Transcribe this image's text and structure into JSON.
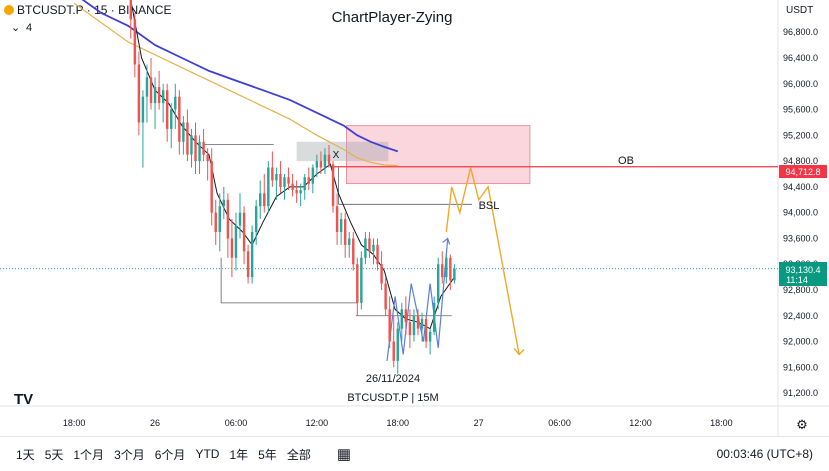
{
  "header": {
    "symbol": "BTCUSDT.P · 15 · BINANCE",
    "indicator_count": "4",
    "watermark": "ChartPlayer-Zying",
    "currency": "USDT"
  },
  "colors": {
    "up": "#26a69a",
    "down": "#ef5350",
    "ma_fast": "#131722",
    "ma_slow_blue": "#3f3fd6",
    "ma_slow_gold": "#e3b24d",
    "projection": "#f0a92a",
    "ob_fill": "#f9c8d0",
    "level_line": "#f23645",
    "price_tag": "#089981"
  },
  "chart_data": {
    "type": "candlestick",
    "y_ticks": [
      "96,800.0",
      "96,400.0",
      "96,000.0",
      "95,600.0",
      "95,200.0",
      "94,800.0",
      "94,400.0",
      "94,000.0",
      "93,600.0",
      "93,200.0",
      "92,800.0",
      "92,400.0",
      "92,000.0",
      "91,600.0",
      "91,200.0"
    ],
    "y_tick_values": [
      96800,
      96400,
      96000,
      95600,
      95200,
      94800,
      94400,
      94000,
      93600,
      93200,
      92800,
      92400,
      92000,
      91600,
      91200
    ],
    "ylim": [
      91000,
      97300
    ],
    "x_ticks": [
      "18:00",
      "26",
      "06:00",
      "12:00",
      "18:00",
      "27",
      "06:00",
      "12:00",
      "18:00"
    ],
    "x_tick_hours": [
      18,
      24,
      30,
      36,
      42,
      48,
      54,
      60,
      66
    ],
    "xlim": [
      12.5,
      70.2
    ],
    "candles": [
      {
        "t": 22.2,
        "o": 97300,
        "h": 97450,
        "l": 96700,
        "c": 97000
      },
      {
        "t": 22.5,
        "o": 97000,
        "h": 97100,
        "l": 96100,
        "c": 96300
      },
      {
        "t": 22.8,
        "o": 96300,
        "h": 96500,
        "l": 95200,
        "c": 95400
      },
      {
        "t": 23.1,
        "o": 95400,
        "h": 95900,
        "l": 94700,
        "c": 95800
      },
      {
        "t": 23.4,
        "o": 95800,
        "h": 96300,
        "l": 95400,
        "c": 96100
      },
      {
        "t": 23.7,
        "o": 96100,
        "h": 96400,
        "l": 95600,
        "c": 95700
      },
      {
        "t": 24.0,
        "o": 95700,
        "h": 96100,
        "l": 95300,
        "c": 95950
      },
      {
        "t": 24.3,
        "o": 95950,
        "h": 96200,
        "l": 95600,
        "c": 95700
      },
      {
        "t": 24.6,
        "o": 95700,
        "h": 96000,
        "l": 95400,
        "c": 95900
      },
      {
        "t": 24.9,
        "o": 95900,
        "h": 96000,
        "l": 95100,
        "c": 95300
      },
      {
        "t": 25.2,
        "o": 95300,
        "h": 95700,
        "l": 95000,
        "c": 95600
      },
      {
        "t": 25.5,
        "o": 95600,
        "h": 96000,
        "l": 95300,
        "c": 95800
      },
      {
        "t": 25.8,
        "o": 95800,
        "h": 95900,
        "l": 94900,
        "c": 95100
      },
      {
        "t": 26.1,
        "o": 95100,
        "h": 95500,
        "l": 94900,
        "c": 95400
      },
      {
        "t": 26.4,
        "o": 95400,
        "h": 95600,
        "l": 94800,
        "c": 94900
      },
      {
        "t": 26.7,
        "o": 94900,
        "h": 95300,
        "l": 94700,
        "c": 95200
      },
      {
        "t": 27.0,
        "o": 95200,
        "h": 95400,
        "l": 94600,
        "c": 94800
      },
      {
        "t": 27.3,
        "o": 94800,
        "h": 95200,
        "l": 94600,
        "c": 95100
      },
      {
        "t": 27.6,
        "o": 95100,
        "h": 95300,
        "l": 94800,
        "c": 94900
      },
      {
        "t": 27.9,
        "o": 94900,
        "h": 95000,
        "l": 94500,
        "c": 94800
      },
      {
        "t": 28.2,
        "o": 94800,
        "h": 95000,
        "l": 93800,
        "c": 94000
      },
      {
        "t": 28.5,
        "o": 94000,
        "h": 94200,
        "l": 93500,
        "c": 93700
      },
      {
        "t": 28.8,
        "o": 93700,
        "h": 94300,
        "l": 93400,
        "c": 94100
      },
      {
        "t": 29.1,
        "o": 94100,
        "h": 94400,
        "l": 93900,
        "c": 94200
      },
      {
        "t": 29.4,
        "o": 94200,
        "h": 94300,
        "l": 93300,
        "c": 93600
      },
      {
        "t": 29.7,
        "o": 93600,
        "h": 93900,
        "l": 93000,
        "c": 93300
      },
      {
        "t": 30.0,
        "o": 93300,
        "h": 94000,
        "l": 93100,
        "c": 93800
      },
      {
        "t": 30.3,
        "o": 93800,
        "h": 94300,
        "l": 93600,
        "c": 94000
      },
      {
        "t": 30.6,
        "o": 94000,
        "h": 94100,
        "l": 93200,
        "c": 93400
      },
      {
        "t": 30.9,
        "o": 93400,
        "h": 93500,
        "l": 92900,
        "c": 93000
      },
      {
        "t": 31.2,
        "o": 93000,
        "h": 93800,
        "l": 92900,
        "c": 93700
      },
      {
        "t": 31.5,
        "o": 93700,
        "h": 94200,
        "l": 93500,
        "c": 94100
      },
      {
        "t": 31.8,
        "o": 94100,
        "h": 94500,
        "l": 93900,
        "c": 94300
      },
      {
        "t": 32.1,
        "o": 94300,
        "h": 94600,
        "l": 94000,
        "c": 94100
      },
      {
        "t": 32.4,
        "o": 94100,
        "h": 94800,
        "l": 94000,
        "c": 94700
      },
      {
        "t": 32.7,
        "o": 94700,
        "h": 94950,
        "l": 94400,
        "c": 94500
      },
      {
        "t": 33.0,
        "o": 94500,
        "h": 94700,
        "l": 94200,
        "c": 94600
      },
      {
        "t": 33.3,
        "o": 94600,
        "h": 94800,
        "l": 94300,
        "c": 94400
      },
      {
        "t": 33.6,
        "o": 94400,
        "h": 94600,
        "l": 94200,
        "c": 94550
      },
      {
        "t": 33.9,
        "o": 94550,
        "h": 94700,
        "l": 94350,
        "c": 94450
      },
      {
        "t": 34.2,
        "o": 94450,
        "h": 94600,
        "l": 94250,
        "c": 94350
      },
      {
        "t": 34.5,
        "o": 94350,
        "h": 94500,
        "l": 94150,
        "c": 94300
      },
      {
        "t": 34.8,
        "o": 94300,
        "h": 94450,
        "l": 94100,
        "c": 94350
      },
      {
        "t": 35.1,
        "o": 94350,
        "h": 94600,
        "l": 94200,
        "c": 94550
      },
      {
        "t": 35.4,
        "o": 94550,
        "h": 94700,
        "l": 94350,
        "c": 94450
      },
      {
        "t": 35.7,
        "o": 94450,
        "h": 94750,
        "l": 94300,
        "c": 94700
      },
      {
        "t": 36.0,
        "o": 94700,
        "h": 94900,
        "l": 94550,
        "c": 94800
      },
      {
        "t": 36.3,
        "o": 94800,
        "h": 94950,
        "l": 94600,
        "c": 94700
      },
      {
        "t": 36.6,
        "o": 94700,
        "h": 95000,
        "l": 94600,
        "c": 94900
      },
      {
        "t": 36.9,
        "o": 94900,
        "h": 95050,
        "l": 94700,
        "c": 94750
      },
      {
        "t": 37.2,
        "o": 94750,
        "h": 94800,
        "l": 94000,
        "c": 94100
      },
      {
        "t": 37.5,
        "o": 94100,
        "h": 94300,
        "l": 93500,
        "c": 93700
      },
      {
        "t": 37.8,
        "o": 93700,
        "h": 94000,
        "l": 93500,
        "c": 93900
      },
      {
        "t": 38.1,
        "o": 93900,
        "h": 94000,
        "l": 93300,
        "c": 93500
      },
      {
        "t": 38.4,
        "o": 93500,
        "h": 93700,
        "l": 93300,
        "c": 93600
      },
      {
        "t": 38.7,
        "o": 93600,
        "h": 93700,
        "l": 93100,
        "c": 93200
      },
      {
        "t": 39.0,
        "o": 93200,
        "h": 93300,
        "l": 92400,
        "c": 92600
      },
      {
        "t": 39.3,
        "o": 92600,
        "h": 93400,
        "l": 92500,
        "c": 93300
      },
      {
        "t": 39.6,
        "o": 93300,
        "h": 93700,
        "l": 93200,
        "c": 93600
      },
      {
        "t": 39.9,
        "o": 93600,
        "h": 93700,
        "l": 93300,
        "c": 93400
      },
      {
        "t": 40.2,
        "o": 93400,
        "h": 93600,
        "l": 93200,
        "c": 93500
      },
      {
        "t": 40.5,
        "o": 93500,
        "h": 93600,
        "l": 93100,
        "c": 93200
      },
      {
        "t": 40.8,
        "o": 93200,
        "h": 93400,
        "l": 92800,
        "c": 92900
      },
      {
        "t": 41.1,
        "o": 92900,
        "h": 93000,
        "l": 92400,
        "c": 92500
      },
      {
        "t": 41.4,
        "o": 92500,
        "h": 92700,
        "l": 91900,
        "c": 92000
      },
      {
        "t": 41.7,
        "o": 92000,
        "h": 92400,
        "l": 91600,
        "c": 91700
      },
      {
        "t": 42.0,
        "o": 91700,
        "h": 92300,
        "l": 91500,
        "c": 92200
      },
      {
        "t": 42.3,
        "o": 92200,
        "h": 92600,
        "l": 92000,
        "c": 92500
      },
      {
        "t": 42.6,
        "o": 92500,
        "h": 92700,
        "l": 92100,
        "c": 92300
      },
      {
        "t": 42.9,
        "o": 92300,
        "h": 92500,
        "l": 91900,
        "c": 92100
      },
      {
        "t": 43.2,
        "o": 92100,
        "h": 92500,
        "l": 92000,
        "c": 92400
      },
      {
        "t": 43.5,
        "o": 92400,
        "h": 92500,
        "l": 92100,
        "c": 92200
      },
      {
        "t": 43.8,
        "o": 92200,
        "h": 92450,
        "l": 92000,
        "c": 92350
      },
      {
        "t": 44.1,
        "o": 92350,
        "h": 92400,
        "l": 91900,
        "c": 92000
      },
      {
        "t": 44.4,
        "o": 92000,
        "h": 92200,
        "l": 91800,
        "c": 92150
      },
      {
        "t": 44.7,
        "o": 92150,
        "h": 92700,
        "l": 92100,
        "c": 92600
      },
      {
        "t": 45.0,
        "o": 92600,
        "h": 93300,
        "l": 92500,
        "c": 93200
      },
      {
        "t": 45.3,
        "o": 93200,
        "h": 93400,
        "l": 92900,
        "c": 93000
      },
      {
        "t": 45.6,
        "o": 93000,
        "h": 93350,
        "l": 92900,
        "c": 93300
      },
      {
        "t": 45.9,
        "o": 93300,
        "h": 93350,
        "l": 92800,
        "c": 92950
      },
      {
        "t": 46.2,
        "o": 92950,
        "h": 93200,
        "l": 92900,
        "c": 93130
      }
    ],
    "ma_fast": [
      [
        22.2,
        97300
      ],
      [
        23.0,
        96400
      ],
      [
        24.0,
        95900
      ],
      [
        25.0,
        95700
      ],
      [
        26.0,
        95350
      ],
      [
        27.0,
        95100
      ],
      [
        28.0,
        94900
      ],
      [
        28.6,
        94300
      ],
      [
        29.5,
        93900
      ],
      [
        30.5,
        93700
      ],
      [
        31.2,
        93500
      ],
      [
        32.0,
        93850
      ],
      [
        33.0,
        94250
      ],
      [
        34.0,
        94400
      ],
      [
        35.0,
        94400
      ],
      [
        36.0,
        94600
      ],
      [
        37.0,
        94750
      ],
      [
        37.6,
        94300
      ],
      [
        38.5,
        93850
      ],
      [
        39.3,
        93500
      ],
      [
        40.2,
        93350
      ],
      [
        41.0,
        93100
      ],
      [
        41.8,
        92500
      ],
      [
        42.6,
        92350
      ],
      [
        43.5,
        92300
      ],
      [
        44.4,
        92200
      ],
      [
        45.2,
        92700
      ],
      [
        46.2,
        93000
      ]
    ],
    "ma_blue": [
      [
        18.0,
        97400
      ],
      [
        20.0,
        97100
      ],
      [
        22.0,
        96900
      ],
      [
        24.0,
        96600
      ],
      [
        26.0,
        96400
      ],
      [
        28.0,
        96200
      ],
      [
        30.0,
        96050
      ],
      [
        32.0,
        95900
      ],
      [
        34.0,
        95750
      ],
      [
        36.0,
        95550
      ],
      [
        38.0,
        95350
      ],
      [
        39.0,
        95200
      ],
      [
        40.0,
        95100
      ],
      [
        41.0,
        95020
      ],
      [
        42.0,
        94950
      ]
    ],
    "ma_gold": [
      [
        18.0,
        97250
      ],
      [
        20.0,
        96950
      ],
      [
        22.0,
        96650
      ],
      [
        24.0,
        96450
      ],
      [
        26.0,
        96250
      ],
      [
        28.0,
        96050
      ],
      [
        30.0,
        95850
      ],
      [
        32.0,
        95650
      ],
      [
        34.0,
        95450
      ],
      [
        36.0,
        95200
      ],
      [
        38.0,
        94980
      ],
      [
        39.0,
        94850
      ],
      [
        40.0,
        94780
      ],
      [
        41.0,
        94740
      ],
      [
        42.0,
        94730
      ]
    ],
    "projection": [
      [
        45.6,
        93700
      ],
      [
        46.0,
        94400
      ],
      [
        46.6,
        94000
      ],
      [
        47.4,
        94700
      ],
      [
        48.0,
        94200
      ],
      [
        48.7,
        94400
      ],
      [
        51.0,
        91800
      ]
    ],
    "zigzag_blue": [
      [
        41.2,
        91700
      ],
      [
        41.8,
        92700
      ],
      [
        42.4,
        91800
      ],
      [
        43.0,
        92900
      ],
      [
        43.9,
        92000
      ],
      [
        44.4,
        92900
      ],
      [
        45.0,
        91900
      ],
      [
        45.7,
        93600
      ]
    ],
    "ob_zone": {
      "x1": 38.2,
      "x2": 51.8,
      "y1": 94450,
      "y2": 95350
    },
    "gray_zone": {
      "x1": 34.5,
      "x2": 41.3,
      "y1": 94800,
      "y2": 95100
    },
    "level_line": 94712.8,
    "bsl_level": 94130,
    "x_level_line": {
      "x1": 27.6,
      "x2": 32.8,
      "y": 95060
    },
    "lower_level_1": {
      "x1": 28.9,
      "x2": 39.0,
      "y": 92600
    },
    "lower_level_2": {
      "x1": 38.9,
      "x2": 46.0,
      "y": 92400
    },
    "last_price": 93130.4
  },
  "annotations": {
    "x_label": "X",
    "bsl_label": "BSL",
    "ob_label": "OB",
    "date_label": "26/11/2024",
    "footer_label": "BTCUSDT.P | 15M",
    "level_tag": "94,712.8",
    "price_tag": "93,130.4",
    "countdown": "11:14"
  },
  "bottom_bar": {
    "ranges": [
      "1天",
      "5天",
      "1个月",
      "3个月",
      "6个月",
      "YTD",
      "1年",
      "5年",
      "全部"
    ],
    "clock": "00:03:46 (UTC+8)"
  }
}
